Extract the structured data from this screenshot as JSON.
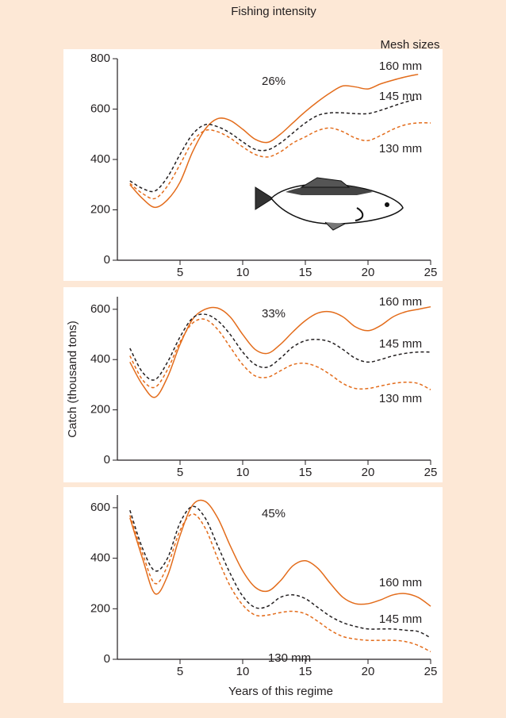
{
  "labels": {
    "fishing_intensity": "Fishing intensity",
    "mesh_sizes": "Mesh sizes",
    "y_label": "Catch (thousand tons)",
    "x_label": "Years of this regime"
  },
  "chart_data": [
    {
      "type": "line",
      "annotation": "26%",
      "x": [
        1,
        2,
        3,
        4,
        5,
        6,
        7,
        8,
        9,
        10,
        11,
        12,
        13,
        14,
        15,
        16,
        17,
        18,
        19,
        20,
        21,
        22,
        23,
        24,
        25
      ],
      "xlim": [
        0,
        25
      ],
      "xticks": [
        5,
        10,
        15,
        20,
        25
      ],
      "ylim": [
        0,
        800
      ],
      "yticks": [
        0,
        200,
        400,
        600,
        800
      ],
      "series": [
        {
          "name": "160 mm",
          "color": "#e36c1b",
          "dashed": false,
          "values": [
            300,
            245,
            210,
            240,
            310,
            430,
            520,
            562,
            555,
            520,
            480,
            468,
            500,
            545,
            590,
            630,
            665,
            692,
            688,
            680,
            700,
            715,
            728,
            738,
            null
          ]
        },
        {
          "name": "145 mm",
          "color": "#231f20",
          "dashed": true,
          "values": [
            315,
            285,
            275,
            330,
            420,
            500,
            538,
            530,
            505,
            470,
            440,
            438,
            465,
            505,
            545,
            575,
            585,
            585,
            582,
            582,
            595,
            612,
            628,
            640,
            null
          ]
        },
        {
          "name": "130 mm",
          "color": "#e36c1b",
          "dashed": true,
          "values": [
            305,
            265,
            245,
            295,
            380,
            470,
            515,
            510,
            485,
            450,
            420,
            410,
            430,
            465,
            490,
            515,
            525,
            510,
            485,
            475,
            495,
            520,
            538,
            545,
            545
          ]
        }
      ]
    },
    {
      "type": "line",
      "annotation": "33%",
      "x": [
        1,
        2,
        3,
        4,
        5,
        6,
        7,
        8,
        9,
        10,
        11,
        12,
        13,
        14,
        15,
        16,
        17,
        18,
        19,
        20,
        21,
        22,
        23,
        24,
        25
      ],
      "xlim": [
        0,
        25
      ],
      "xticks": [
        5,
        10,
        15,
        20,
        25
      ],
      "ylim": [
        0,
        650
      ],
      "yticks": [
        0,
        200,
        400,
        600
      ],
      "series": [
        {
          "name": "160 mm",
          "color": "#e36c1b",
          "dashed": false,
          "values": [
            390,
            300,
            250,
            330,
            460,
            560,
            600,
            605,
            570,
            500,
            440,
            425,
            460,
            510,
            555,
            585,
            590,
            570,
            530,
            515,
            535,
            570,
            590,
            600,
            610
          ]
        },
        {
          "name": "145 mm",
          "color": "#231f20",
          "dashed": true,
          "values": [
            445,
            350,
            320,
            390,
            490,
            565,
            580,
            555,
            500,
            430,
            380,
            370,
            405,
            450,
            475,
            480,
            470,
            440,
            405,
            390,
            400,
            415,
            425,
            430,
            430
          ]
        },
        {
          "name": "130 mm",
          "color": "#e36c1b",
          "dashed": true,
          "values": [
            415,
            320,
            290,
            360,
            470,
            545,
            560,
            520,
            450,
            380,
            335,
            330,
            355,
            380,
            385,
            370,
            340,
            305,
            285,
            285,
            295,
            305,
            310,
            305,
            280
          ]
        }
      ]
    },
    {
      "type": "line",
      "annotation": "45%",
      "x": [
        1,
        2,
        3,
        4,
        5,
        6,
        7,
        8,
        9,
        10,
        11,
        12,
        13,
        14,
        15,
        16,
        17,
        18,
        19,
        20,
        21,
        22,
        23,
        24,
        25
      ],
      "xlim": [
        0,
        25
      ],
      "xticks": [
        5,
        10,
        15,
        20,
        25
      ],
      "ylim": [
        0,
        650
      ],
      "yticks": [
        0,
        200,
        400,
        600
      ],
      "series": [
        {
          "name": "160 mm",
          "color": "#e36c1b",
          "dashed": false,
          "values": [
            560,
            400,
            260,
            330,
            490,
            610,
            625,
            560,
            450,
            350,
            285,
            270,
            310,
            370,
            390,
            360,
            300,
            245,
            220,
            220,
            235,
            255,
            260,
            245,
            210
          ]
        },
        {
          "name": "145 mm",
          "color": "#231f20",
          "dashed": true,
          "values": [
            590,
            440,
            350,
            400,
            540,
            605,
            560,
            450,
            340,
            250,
            205,
            210,
            245,
            255,
            240,
            205,
            170,
            145,
            130,
            120,
            120,
            120,
            115,
            110,
            85
          ]
        },
        {
          "name": "130 mm",
          "color": "#e36c1b",
          "dashed": true,
          "values": [
            570,
            420,
            300,
            370,
            510,
            575,
            520,
            400,
            290,
            215,
            175,
            175,
            185,
            190,
            180,
            150,
            115,
            90,
            80,
            75,
            75,
            75,
            70,
            55,
            30
          ]
        }
      ]
    }
  ]
}
